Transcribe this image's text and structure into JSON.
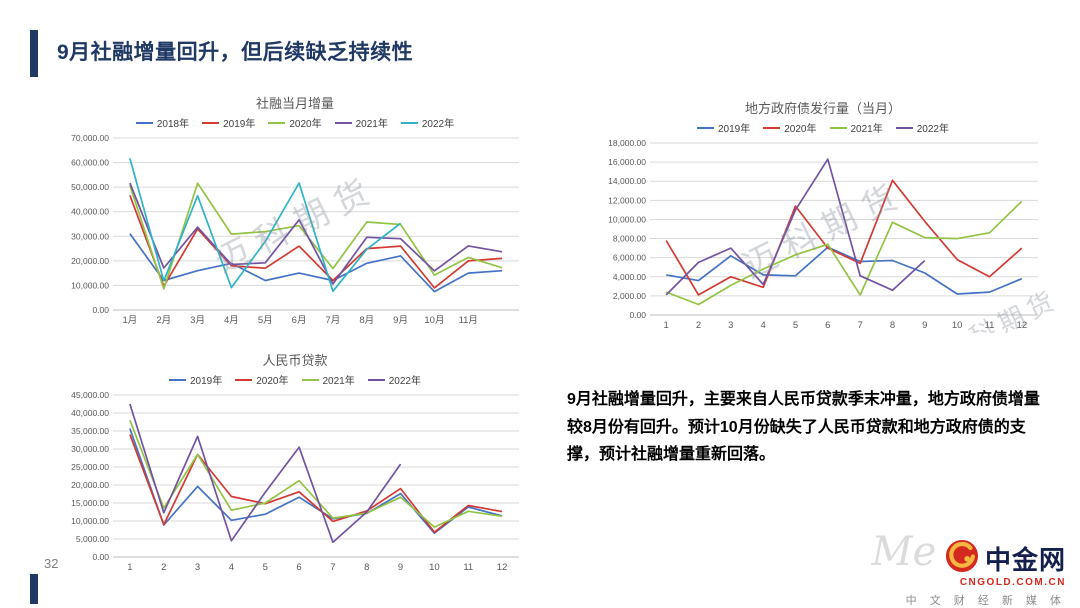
{
  "slide": {
    "title": "9月社融增量回升，但后续缺乏持续性",
    "page_number": "32",
    "note": "9月社融增量回升，主要来自人民币贷款季末冲量，地方政府债增量较8月份有回升。预计10月份缺失了人民币贷款和地方政府债的支撑，预计社融增量重新回落。",
    "watermark": "迈科期货"
  },
  "logo": {
    "name": "中金网",
    "url": "CNGOLD.COM.CN",
    "tagline": "中 文 财 经 新 媒 体",
    "background_text": "Me"
  },
  "colors": {
    "accent": "#203864",
    "grid": "#d9d9d9",
    "axis": "#bfbfbf",
    "tick_label": "#595959"
  },
  "chart_data": [
    {
      "type": "line",
      "title": "社融当月增量",
      "grid": true,
      "legend_position": "top",
      "x": [
        "1月",
        "2月",
        "3月",
        "4月",
        "5月",
        "6月",
        "7月",
        "8月",
        "9月",
        "10月",
        "11月",
        ""
      ],
      "ylim": [
        0,
        70000
      ],
      "ystep": 10000,
      "series": [
        {
          "name": "2018年",
          "color": "#4472c4",
          "values": [
            31000,
            12000,
            16000,
            19000,
            12000,
            15000,
            12000,
            19000,
            22000,
            7500,
            15000,
            16000
          ]
        },
        {
          "name": "2019年",
          "color": "#d23a32",
          "values": [
            46700,
            9700,
            33000,
            18000,
            17000,
            26000,
            12000,
            25000,
            26000,
            9000,
            20000,
            21000
          ]
        },
        {
          "name": "2020年",
          "color": "#93c343",
          "values": [
            50700,
            8600,
            51600,
            30900,
            31900,
            34300,
            16900,
            35800,
            34800,
            14200,
            21400,
            17200
          ]
        },
        {
          "name": "2021年",
          "color": "#7253a2",
          "values": [
            51700,
            17100,
            33700,
            18500,
            19200,
            36700,
            10600,
            29600,
            29000,
            15900,
            26100,
            23700
          ]
        },
        {
          "name": "2022年",
          "color": "#2eb3c7",
          "values": [
            61700,
            11900,
            46500,
            9100,
            27900,
            51700,
            7600,
            24700,
            35300,
            null,
            null,
            null
          ]
        }
      ]
    },
    {
      "type": "line",
      "title": "地方政府债发行量（当月）",
      "grid": true,
      "legend_position": "top",
      "x": [
        "1",
        "2",
        "3",
        "4",
        "5",
        "6",
        "7",
        "8",
        "9",
        "10",
        "11",
        "12"
      ],
      "ylim": [
        0,
        18000
      ],
      "ystep": 2000,
      "series": [
        {
          "name": "2019年",
          "color": "#4472c4",
          "values": [
            4200,
            3600,
            6200,
            4200,
            4100,
            7100,
            5600,
            5700,
            4400,
            2200,
            2400,
            3800
          ]
        },
        {
          "name": "2020年",
          "color": "#d23a32",
          "values": [
            7800,
            2100,
            4000,
            2900,
            11400,
            7000,
            5400,
            14100,
            9800,
            5800,
            4000,
            7000
          ]
        },
        {
          "name": "2021年",
          "color": "#93c343",
          "values": [
            2400,
            1100,
            3100,
            4800,
            6300,
            7400,
            2100,
            9700,
            8100,
            8000,
            8600,
            11900
          ]
        },
        {
          "name": "2022年",
          "color": "#7253a2",
          "values": [
            2100,
            5500,
            7000,
            3200,
            11000,
            16300,
            4100,
            2600,
            5700,
            null,
            null,
            null
          ]
        }
      ]
    },
    {
      "type": "line",
      "title": "人民币贷款",
      "grid": true,
      "legend_position": "top",
      "x": [
        "1",
        "2",
        "3",
        "4",
        "5",
        "6",
        "7",
        "8",
        "9",
        "10",
        "11",
        "12"
      ],
      "ylim": [
        0,
        45000
      ],
      "ystep": 5000,
      "series": [
        {
          "name": "2019年",
          "color": "#4472c4",
          "values": [
            35700,
            8900,
            19600,
            10200,
            11900,
            16600,
            10600,
            12100,
            17600,
            6600,
            13900,
            11400
          ]
        },
        {
          "name": "2020年",
          "color": "#d23a32",
          "values": [
            34000,
            9000,
            28500,
            16800,
            14800,
            18100,
            9900,
            12800,
            19000,
            6900,
            14300,
            12600
          ]
        },
        {
          "name": "2021年",
          "color": "#93c343",
          "values": [
            38000,
            13600,
            28500,
            13000,
            15000,
            21200,
            10800,
            12200,
            16600,
            8300,
            12700,
            11300
          ]
        },
        {
          "name": "2022年",
          "color": "#7253a2",
          "values": [
            42500,
            12300,
            33500,
            4500,
            18000,
            30500,
            4100,
            12500,
            25800,
            null,
            null,
            null
          ]
        }
      ]
    }
  ]
}
